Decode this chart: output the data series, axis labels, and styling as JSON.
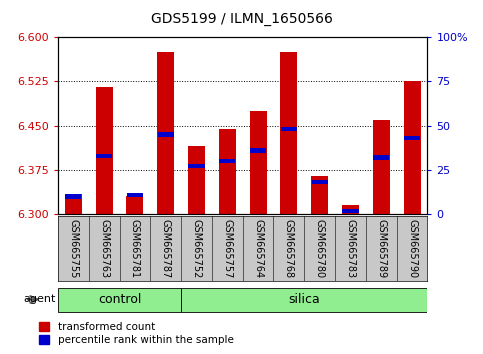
{
  "title": "GDS5199 / ILMN_1650566",
  "samples": [
    "GSM665755",
    "GSM665763",
    "GSM665781",
    "GSM665787",
    "GSM665752",
    "GSM665757",
    "GSM665764",
    "GSM665768",
    "GSM665780",
    "GSM665783",
    "GSM665789",
    "GSM665790"
  ],
  "n_control": 4,
  "n_silica": 8,
  "red_values": [
    6.335,
    6.515,
    6.33,
    6.575,
    6.415,
    6.445,
    6.475,
    6.575,
    6.365,
    6.315,
    6.46,
    6.525
  ],
  "blue_values_pct": [
    10,
    33,
    11,
    45,
    27,
    30,
    36,
    48,
    18,
    2,
    32,
    43
  ],
  "ymin": 6.3,
  "ymax": 6.6,
  "yticks": [
    6.3,
    6.375,
    6.45,
    6.525,
    6.6
  ],
  "right_yticks": [
    0,
    25,
    50,
    75,
    100
  ],
  "bar_color": "#cc0000",
  "blue_color": "#0000cc",
  "group_color": "#90ee90",
  "tick_bg_color": "#c8c8c8",
  "left_tick_color": "#cc0000",
  "right_tick_color": "#0000cc",
  "bar_width": 0.55,
  "title_fontsize": 10,
  "tick_fontsize": 8,
  "label_fontsize": 7,
  "group_fontsize": 9,
  "legend_fontsize": 7.5
}
